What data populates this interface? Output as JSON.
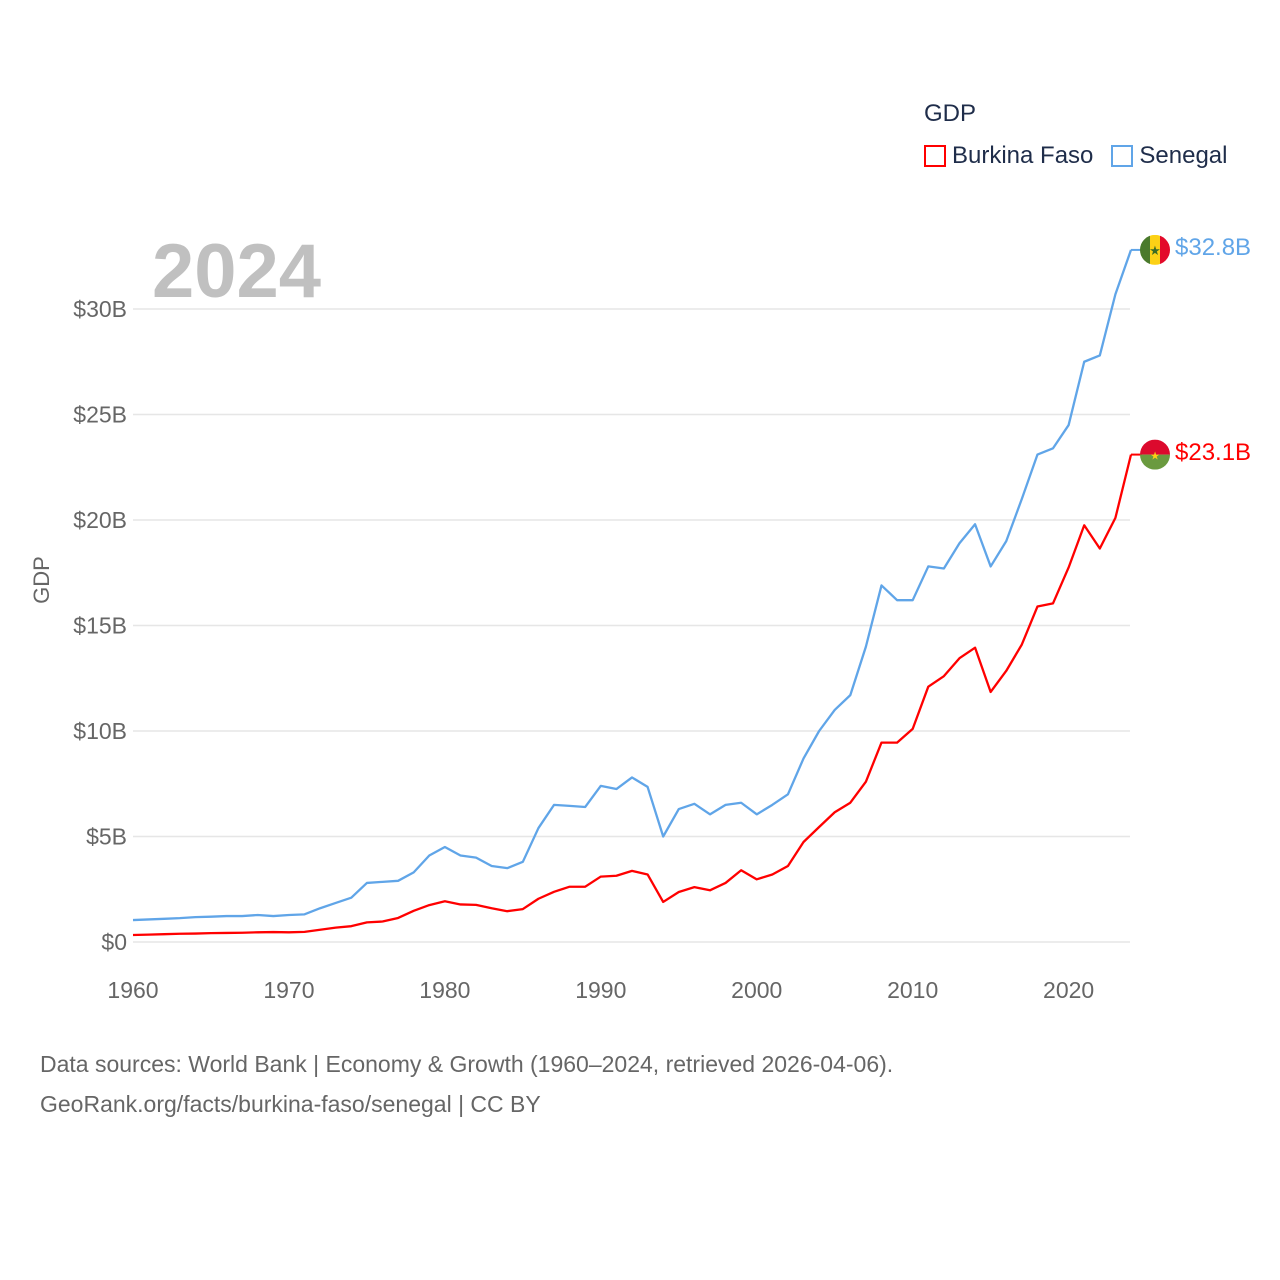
{
  "chart_data": {
    "type": "line",
    "title": "",
    "xlabel": "",
    "ylabel": "GDP",
    "xlim": [
      1960,
      2024
    ],
    "ylim": [
      0,
      33
    ],
    "x_ticks": [
      1960,
      1970,
      1980,
      1990,
      2000,
      2010,
      2020
    ],
    "x_tick_labels": [
      "1960",
      "1970",
      "1980",
      "1990",
      "2000",
      "2010",
      "2020"
    ],
    "y_ticks": [
      0,
      5,
      10,
      15,
      20,
      25,
      30
    ],
    "y_tick_labels": [
      "$0",
      "$5B",
      "$10B",
      "$15B",
      "$20B",
      "$25B",
      "$30B"
    ],
    "grid": true,
    "year_label": "2024",
    "legend": {
      "title": "GDP",
      "placement": "top-right"
    },
    "x": [
      1960,
      1961,
      1962,
      1963,
      1964,
      1965,
      1966,
      1967,
      1968,
      1969,
      1970,
      1971,
      1972,
      1973,
      1974,
      1975,
      1976,
      1977,
      1978,
      1979,
      1980,
      1981,
      1982,
      1983,
      1984,
      1985,
      1986,
      1987,
      1988,
      1989,
      1990,
      1991,
      1992,
      1993,
      1994,
      1995,
      1996,
      1997,
      1998,
      1999,
      2000,
      2001,
      2002,
      2003,
      2004,
      2005,
      2006,
      2007,
      2008,
      2009,
      2010,
      2011,
      2012,
      2013,
      2014,
      2015,
      2016,
      2017,
      2018,
      2019,
      2020,
      2021,
      2022,
      2023,
      2024
    ],
    "series": [
      {
        "name": "Burkina Faso",
        "color": "#ff0000",
        "end_label": "$23.1B",
        "values": [
          0.33,
          0.35,
          0.37,
          0.39,
          0.4,
          0.42,
          0.43,
          0.44,
          0.46,
          0.47,
          0.46,
          0.48,
          0.58,
          0.68,
          0.75,
          0.93,
          0.97,
          1.14,
          1.48,
          1.75,
          1.93,
          1.78,
          1.76,
          1.6,
          1.46,
          1.56,
          2.05,
          2.38,
          2.62,
          2.62,
          3.1,
          3.14,
          3.37,
          3.2,
          1.9,
          2.37,
          2.6,
          2.45,
          2.8,
          3.4,
          2.97,
          3.2,
          3.6,
          4.74,
          5.45,
          6.15,
          6.6,
          7.6,
          9.45,
          9.45,
          10.1,
          12.1,
          12.6,
          13.45,
          13.95,
          11.85,
          12.85,
          14.1,
          15.9,
          16.05,
          17.75,
          19.75,
          18.65,
          20.1,
          23.1
        ]
      },
      {
        "name": "Senegal",
        "color": "#60a5e8",
        "end_label": "$32.8B",
        "values": [
          1.04,
          1.07,
          1.1,
          1.13,
          1.18,
          1.2,
          1.23,
          1.23,
          1.28,
          1.23,
          1.28,
          1.31,
          1.6,
          1.85,
          2.1,
          2.8,
          2.85,
          2.9,
          3.3,
          4.1,
          4.5,
          4.1,
          4.0,
          3.6,
          3.5,
          3.8,
          5.4,
          6.5,
          6.45,
          6.4,
          7.4,
          7.25,
          7.8,
          7.35,
          5.0,
          6.3,
          6.55,
          6.05,
          6.5,
          6.6,
          6.05,
          6.5,
          7.0,
          8.7,
          10.0,
          11.0,
          11.7,
          14.0,
          16.9,
          16.2,
          16.2,
          17.8,
          17.7,
          18.9,
          19.8,
          17.8,
          19.0,
          21.0,
          23.1,
          23.4,
          24.5,
          27.5,
          27.8,
          30.7,
          32.8
        ]
      }
    ]
  },
  "footer": {
    "line1": "Data sources: World Bank | Economy & Growth (1960–2024, retrieved 2026-04-06).",
    "line2": "GeoRank.org/facts/burkina-faso/senegal | CC BY"
  }
}
